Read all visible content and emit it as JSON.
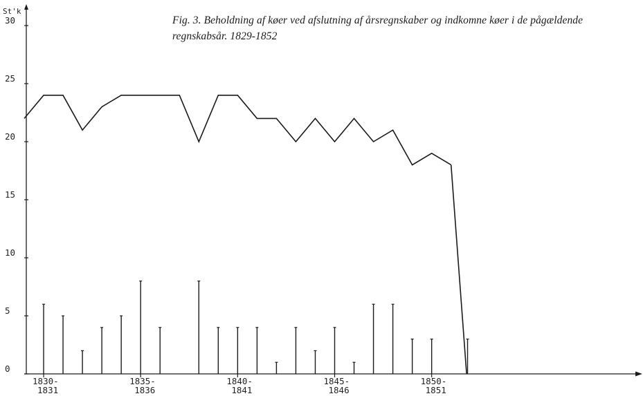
{
  "caption": "Fig. 3. Beholdning af køer ved afslutning af årsregnskaber og indkomne køer i de pågældende regnskabsår. 1829-1852",
  "chart_data": {
    "type": "line",
    "title": "Fig. 3. Beholdning af køer ved afslutning af årsregnskaber og indkomne køer i de pågældende regnskabsår. 1829-1852",
    "ylabel": "St'k",
    "ylim": [
      0,
      30
    ],
    "y_ticks": [
      "0",
      "5",
      "10",
      "15",
      "20",
      "25",
      "30"
    ],
    "x_ticks": [
      {
        "x": 1830,
        "top": "1830-",
        "bottom": "1831"
      },
      {
        "x": 1835,
        "top": "1835-",
        "bottom": "1836"
      },
      {
        "x": 1840,
        "top": "1840-",
        "bottom": "1841"
      },
      {
        "x": 1845,
        "top": "1845-",
        "bottom": "1846"
      },
      {
        "x": 1850,
        "top": "1850-",
        "bottom": "1851"
      }
    ],
    "xlim": [
      1829,
      1860.5
    ],
    "series": [
      {
        "kind": "line",
        "x": [
          1829,
          1830,
          1831,
          1832,
          1833,
          1834,
          1835,
          1836,
          1837,
          1838,
          1839,
          1840,
          1841,
          1842,
          1843,
          1844,
          1845,
          1846,
          1847,
          1848,
          1849,
          1850,
          1851
        ],
        "y": [
          22,
          24,
          24,
          21,
          23,
          24,
          24,
          24,
          24,
          20,
          24,
          24,
          22,
          22,
          20,
          22,
          20,
          22,
          20,
          21,
          18,
          19,
          18
        ]
      },
      {
        "kind": "stem",
        "x": [
          1830,
          1831,
          1832,
          1833,
          1834,
          1835,
          1836,
          1838,
          1839,
          1840,
          1841,
          1842,
          1843,
          1844,
          1845,
          1846,
          1847,
          1848,
          1849,
          1850,
          1851
        ],
        "y": [
          6,
          5,
          2,
          4,
          5,
          8,
          4,
          8,
          4,
          4,
          4,
          1,
          4,
          2,
          4,
          1,
          6,
          6,
          3,
          3,
          0
        ]
      }
    ],
    "drop_line": {
      "x": [
        1851,
        1851.8
      ],
      "y": [
        18,
        0
      ]
    },
    "final_stem": {
      "x": 1851.85,
      "y": 3
    },
    "grid": false
  }
}
